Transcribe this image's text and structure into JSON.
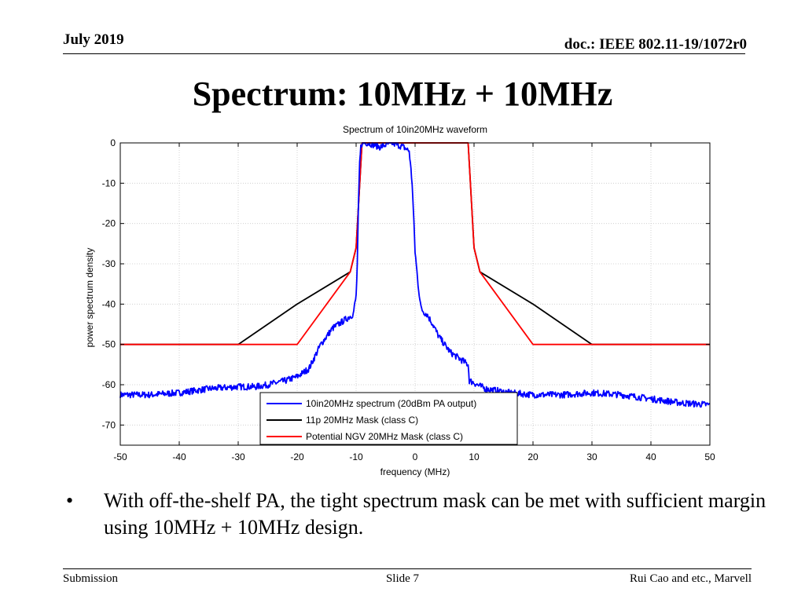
{
  "header": {
    "date": "July 2019",
    "doc": "doc.: IEEE 802.11-19/1072r0"
  },
  "slide_title": "Spectrum: 10MHz + 10MHz",
  "bullet": {
    "symbol": "•",
    "text": "With off-the-shelf PA, the tight spectrum mask can be met with sufficient margin using 10MHz + 10MHz design."
  },
  "footer": {
    "left": "Submission",
    "center": "Slide 7",
    "right": "Rui Cao and etc., Marvell"
  },
  "chart_data": {
    "type": "line",
    "title": "Spectrum of 10in20MHz waveform",
    "xlabel": "frequency (MHz)",
    "ylabel": "power spectrum density",
    "xlim": [
      -50,
      50
    ],
    "ylim": [
      -75,
      0
    ],
    "xticks": [
      -50,
      -40,
      -30,
      -20,
      -10,
      0,
      10,
      20,
      30,
      40,
      50
    ],
    "yticks": [
      0,
      -10,
      -20,
      -30,
      -40,
      -50,
      -60,
      -70
    ],
    "grid": true,
    "legend_position": "bottom-center",
    "series": [
      {
        "name": "10in20MHz spectrum (20dBm PA output)",
        "color": "#0000ff",
        "noisy": true,
        "x": [
          -50,
          -45,
          -40,
          -35,
          -30,
          -27,
          -25,
          -22,
          -20,
          -18,
          -17,
          -16,
          -15,
          -14,
          -13,
          -12,
          -11,
          -10.5,
          -10,
          -9.8,
          -9.6,
          -9.4,
          -9.2,
          -9,
          -8,
          -6,
          -4,
          -2,
          -1,
          -0.5,
          -0.2,
          0,
          0.5,
          1,
          1.5,
          2,
          3,
          4,
          6,
          8,
          9,
          9.2,
          10,
          10.5,
          12,
          14,
          16,
          20,
          25,
          30,
          35,
          40,
          45,
          50
        ],
        "y": [
          -62.5,
          -62.5,
          -62,
          -61,
          -60.5,
          -60.5,
          -60,
          -59,
          -58,
          -56,
          -53,
          -50,
          -48,
          -46,
          -45,
          -44,
          -43,
          -42.5,
          -38,
          -30,
          -15,
          -5,
          -1,
          0,
          0,
          -1,
          0,
          -1,
          -2,
          -10,
          -20,
          -27,
          -35,
          -41,
          -42,
          -42.5,
          -45,
          -48,
          -52,
          -54,
          -55,
          -59,
          -59.5,
          -60,
          -61,
          -61.5,
          -62,
          -62.5,
          -62.5,
          -62,
          -62.5,
          -63.5,
          -64.5,
          -65
        ]
      },
      {
        "name": "11p 20MHz Mask (class C)",
        "color": "#000000",
        "x": [
          -50,
          -30,
          -20,
          -11,
          -10,
          -9,
          9,
          10,
          11,
          20,
          30,
          50
        ],
        "y": [
          -50,
          -50,
          -40,
          -32,
          -26,
          0,
          0,
          -26,
          -32,
          -40,
          -50,
          -50
        ]
      },
      {
        "name": "Potential NGV 20MHz Mask (class C)",
        "color": "#ff0000",
        "x": [
          -50,
          -20,
          -11,
          -10,
          -9,
          9,
          10,
          11,
          20,
          50
        ],
        "y": [
          -50,
          -50,
          -32,
          -26,
          0,
          0,
          -26,
          -32,
          -50,
          -50
        ]
      }
    ]
  }
}
